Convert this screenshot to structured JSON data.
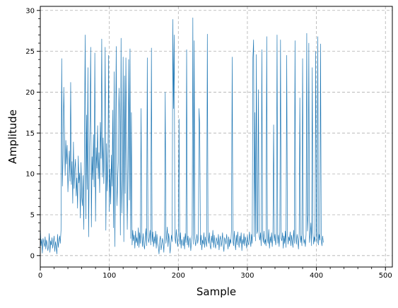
{
  "chart_data": {
    "type": "line",
    "title": "",
    "xlabel": "Sample",
    "ylabel": "Amplitude",
    "xlim": [
      0,
      510
    ],
    "ylim": [
      -1.4,
      30.5
    ],
    "xticks": [
      0,
      100,
      200,
      300,
      400,
      500
    ],
    "yticks": [
      0,
      5,
      10,
      15,
      20,
      25,
      30
    ],
    "grid": true,
    "grid_style": "dashed",
    "line_color": "#1f77b4",
    "series": [
      {
        "values": [
          3.5,
          1.2,
          2.0,
          0.3,
          2.1,
          1.6,
          1.1,
          2.3,
          0.8,
          1.9,
          1.4,
          0.6,
          1.2,
          2.7,
          0.4,
          1.8,
          1.3,
          2.2,
          0.9,
          1.6,
          2.4,
          0.5,
          1.7,
          1.1,
          0.2,
          2.6,
          1.0,
          1.8,
          2.4,
          1.5,
          3.1,
          24.1,
          8.5,
          12.4,
          20.6,
          15.2,
          9.8,
          14.1,
          11.2,
          13.5,
          7.8,
          10.4,
          12.8,
          9.1,
          21.2,
          8.7,
          11.5,
          6.4,
          13.9,
          8.2,
          10.6,
          11.8,
          7.3,
          9.5,
          5.8,
          12.2,
          8.9,
          10.1,
          4.6,
          11.4,
          7.2,
          6.1,
          9.8,
          3.2,
          13.6,
          27.0,
          4.5,
          17.2,
          8.1,
          23.0,
          2.3,
          11.7,
          16.5,
          25.5,
          3.5,
          12.1,
          9.3,
          14.8,
          8.4,
          24.8,
          4.2,
          13.2,
          10.7,
          15.9,
          9.4,
          12.6,
          7.7,
          16.3,
          11.9,
          26.5,
          9.6,
          14.4,
          8.8,
          12.9,
          25.5,
          3.1,
          13.7,
          7.9,
          11.2,
          24.5,
          5.4,
          10.6,
          6.3,
          12.3,
          8.5,
          17.8,
          3.4,
          22.5,
          1.1,
          14.2,
          25.6,
          6.1,
          8.7,
          11.4,
          20.5,
          16.4,
          2.5,
          26.6,
          5.2,
          9.3,
          24.3,
          1.7,
          22.0,
          7.6,
          24.2,
          12.8,
          3.2,
          10.7,
          24.0,
          6.8,
          25.3,
          2.1,
          17.5,
          1.3,
          3.1,
          1.8,
          2.5,
          0.9,
          3.0,
          1.6,
          2.2,
          1.2,
          3.4,
          1.0,
          2.8,
          1.5,
          18.0,
          2.4,
          1.1,
          2.7,
          1.4,
          0.8,
          2.0,
          3.3,
          1.2,
          24.2,
          2.5,
          1.6,
          2.2,
          3.1,
          1.3,
          25.4,
          1.7,
          2.9,
          1.1,
          2.3,
          1.5,
          3.0,
          0.9,
          2.6,
          1.4,
          1.1,
          0.2,
          1.9,
          2.4,
          0.7,
          1.3,
          2.1,
          1.6,
          0.4,
          2.8,
          20.0,
          1.5,
          2.3,
          3.5,
          1.1,
          2.7,
          1.8,
          0.3,
          1.4,
          2.5,
          1.7,
          28.9,
          18.0,
          27.0,
          2.3,
          1.5,
          3.2,
          2.0,
          1.1,
          2.6,
          16.7,
          1.4,
          2.8,
          0.9,
          2.0,
          1.5,
          1.2,
          2.3,
          0.8,
          2.7,
          1.6,
          25.2,
          1.3,
          2.4,
          1.0,
          1.8,
          2.2,
          0.6,
          1.7,
          2.5,
          29.1,
          1.4,
          26.3,
          2.1,
          1.2,
          1.9,
          2.6,
          1.5,
          2.2,
          18.0,
          15.8,
          1.3,
          2.5,
          0.7,
          1.9,
          1.4,
          2.8,
          1.0,
          2.3,
          1.6,
          1.1,
          27.1,
          2.2,
          1.5,
          2.8,
          1.2,
          0.8,
          2.4,
          1.6,
          3.1,
          1.0,
          2.5,
          1.4,
          0.9,
          2.2,
          1.8,
          1.3,
          2.6,
          0.7,
          1.9,
          2.4,
          1.1,
          1.6,
          2.8,
          1.3,
          0.5,
          2.2,
          1.9,
          1.4,
          2.6,
          1.7,
          0.8,
          2.3,
          1.1,
          2.0,
          1.5,
          3.2,
          24.3,
          1.8,
          1.2,
          3.0,
          1.6,
          0.7,
          2.5,
          1.3,
          2.9,
          1.7,
          1.0,
          2.4,
          1.5,
          2.8,
          0.6,
          2.0,
          1.4,
          2.7,
          1.2,
          2.3,
          1.8,
          0.9,
          2.5,
          1.6,
          1.3,
          2.9,
          2.0,
          1.1,
          2.6,
          1.5,
          24.2,
          26.4,
          2.3,
          17.5,
          1.8,
          24.6,
          2.7,
          3.1,
          20.3,
          2.4,
          1.9,
          2.8,
          1.2,
          25.2,
          2.6,
          1.6,
          3.0,
          1.4,
          2.0,
          1.2,
          26.8,
          2.1,
          1.5,
          3.2,
          0.9,
          2.3,
          1.6,
          2.8,
          1.1,
          2.5,
          16.0,
          1.8,
          2.6,
          1.3,
          2.2,
          27.0,
          1.5,
          2.5,
          1.1,
          2.9,
          26.4,
          2.1,
          1.8,
          2.8,
          0.9,
          2.4,
          1.5,
          3.0,
          1.0,
          24.5,
          2.6,
          1.4,
          2.3,
          1.8,
          2.9,
          1.2,
          2.5,
          1.7,
          1.0,
          3.1,
          1.5,
          26.3,
          2.2,
          1.4,
          2.6,
          1.9,
          0.8,
          2.8,
          19.3,
          1.6,
          2.4,
          1.2,
          24.1,
          2.7,
          1.5,
          2.0,
          1.1,
          2.6,
          27.2,
          3.0,
          5.0,
          26.0,
          1.6,
          2.5,
          4.0,
          1.2,
          23.0,
          2.8,
          1.4,
          2.3,
          1.7,
          25.0,
          3.1,
          1.5,
          26.8,
          1.3,
          2.6,
          1.9,
          25.9,
          2.0,
          1.2,
          2.4,
          1.6
        ]
      }
    ]
  }
}
